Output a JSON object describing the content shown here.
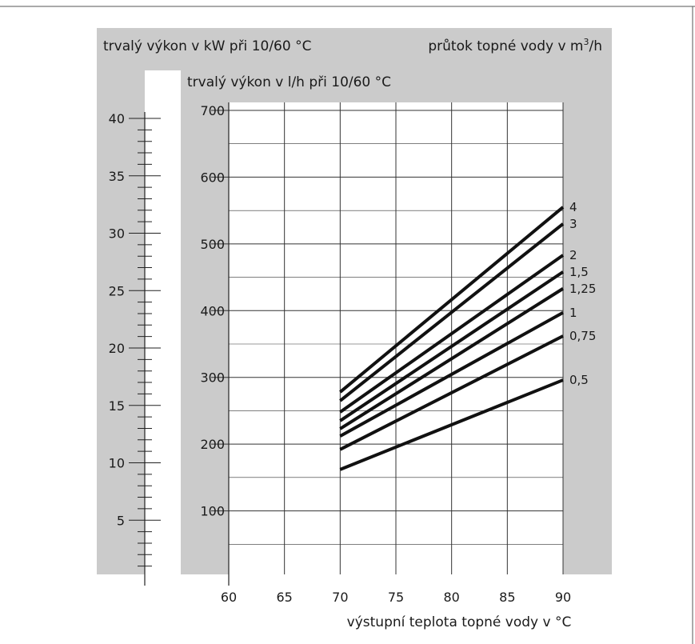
{
  "chart_data": {
    "type": "line",
    "left_axis_title": "trvalý výkon v kW při 10/60 °C",
    "inner_axis_title": "trvalý výkon v l/h při 10/60 °C",
    "right_title": "průtok topné vody v m³/h",
    "xlabel": "výstupní teplota topné vody v °C",
    "x_ticks": [
      "60",
      "65",
      "70",
      "75",
      "80",
      "85",
      "90"
    ],
    "xlim": [
      60,
      90
    ],
    "y_ticks": [
      "100",
      "200",
      "300",
      "400",
      "500",
      "600",
      "700"
    ],
    "ylim": [
      0,
      700
    ],
    "kw_ticks": [
      "5",
      "10",
      "15",
      "20",
      "25",
      "30",
      "35",
      "40"
    ],
    "kw_lim": [
      0,
      40
    ],
    "grid": true,
    "series": [
      {
        "name": "4",
        "x": [
          70,
          90
        ],
        "y": [
          278,
          555
        ]
      },
      {
        "name": "3",
        "x": [
          70,
          90
        ],
        "y": [
          265,
          530
        ]
      },
      {
        "name": "2",
        "x": [
          70,
          90
        ],
        "y": [
          248,
          483
        ]
      },
      {
        "name": "1,5",
        "x": [
          70,
          90
        ],
        "y": [
          235,
          458
        ]
      },
      {
        "name": "1,25",
        "x": [
          70,
          90
        ],
        "y": [
          223,
          433
        ]
      },
      {
        "name": "1",
        "x": [
          70,
          90
        ],
        "y": [
          212,
          397
        ]
      },
      {
        "name": "0,75",
        "x": [
          70,
          90
        ],
        "y": [
          192,
          362
        ]
      },
      {
        "name": "0,5",
        "x": [
          70,
          90
        ],
        "y": [
          162,
          296
        ]
      }
    ]
  }
}
